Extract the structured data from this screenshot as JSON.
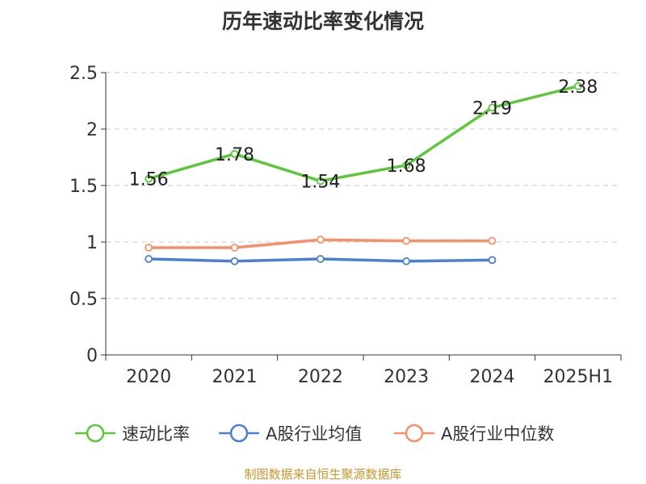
{
  "chart_data": {
    "type": "line",
    "title": "历年速动比率变化情况",
    "categories": [
      "2020",
      "2021",
      "2022",
      "2023",
      "2024",
      "2025H1"
    ],
    "ylim": [
      0,
      2.5
    ],
    "yticks": [
      0,
      0.5,
      1,
      1.5,
      2,
      2.5
    ],
    "ytick_labels": [
      "0",
      "0.5",
      "1",
      "1.5",
      "2",
      "2.5"
    ],
    "grid": "horizontal dashed",
    "legend_position": "bottom",
    "series": [
      {
        "name": "速动比率",
        "color": "#5cc73a",
        "values": [
          1.56,
          1.78,
          1.54,
          1.68,
          2.19,
          2.38
        ],
        "labels": [
          "1.56",
          "1.78",
          "1.54",
          "1.68",
          "2.19",
          "2.38"
        ]
      },
      {
        "name": "A股行业均值",
        "color": "#4a7fd6",
        "values": [
          0.85,
          0.83,
          0.85,
          0.83,
          0.84,
          null
        ]
      },
      {
        "name": "A股行业中位数",
        "color": "#f79068",
        "values": [
          0.95,
          0.95,
          1.02,
          1.01,
          1.01,
          null
        ]
      }
    ],
    "source": "制图数据来自恒生聚源数据库"
  }
}
